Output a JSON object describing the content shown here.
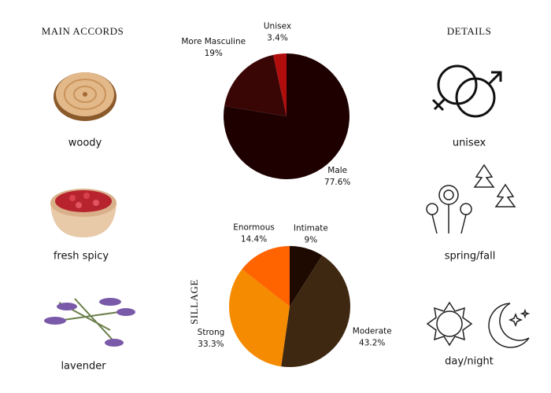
{
  "main_accords": {
    "title": "MAIN ACCORDS",
    "items": [
      "woody",
      "fresh spicy",
      "lavender"
    ]
  },
  "details": {
    "title": "DETAILS",
    "items": [
      "unisex",
      "spring/fall",
      "day/night"
    ]
  },
  "chart_data": [
    {
      "type": "pie",
      "categories": [
        "Male",
        "More Masculine",
        "Unisex"
      ],
      "values": [
        77.6,
        19,
        3.4
      ],
      "value_labels": [
        "77.6%",
        "19%",
        "3.4%"
      ],
      "colors": [
        "#1e0000",
        "#3a0505",
        "#b10d0d"
      ]
    },
    {
      "type": "pie",
      "title": "SILLAGE",
      "categories": [
        "Intimate",
        "Moderate",
        "Strong",
        "Enormous"
      ],
      "values": [
        9,
        43.2,
        33.3,
        14.4
      ],
      "value_labels": [
        "9%",
        "43.2%",
        "33.3%",
        "14.4%"
      ],
      "colors": [
        "#1e0a00",
        "#3f2811",
        "#f58b00",
        "#ff6400"
      ]
    }
  ]
}
